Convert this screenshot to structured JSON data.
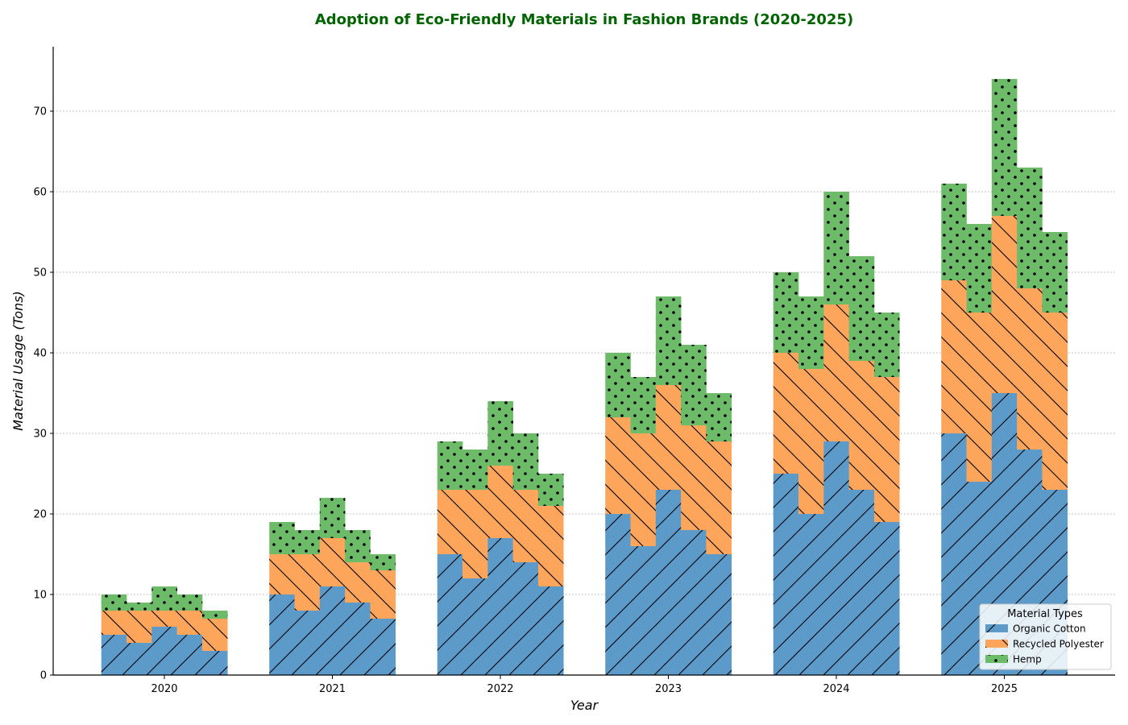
{
  "chart_data": {
    "type": "bar",
    "stacked": true,
    "title": "Adoption of Eco-Friendly Materials in Fashion Brands (2020-2025)",
    "xlabel": "Year",
    "ylabel": "Material Usage (Tons)",
    "categories": [
      "2020",
      "2021",
      "2022",
      "2023",
      "2024",
      "2025"
    ],
    "bars_per_category": 5,
    "ylim": [
      0,
      78
    ],
    "yticks": [
      0,
      10,
      20,
      30,
      40,
      50,
      60,
      70
    ],
    "grid": "y-dotted",
    "legend": {
      "title": "Material Types",
      "placement": "lower-right"
    },
    "series": [
      {
        "name": "Organic Cotton",
        "color": "#5b9ac9",
        "hatch": "/",
        "values": [
          [
            5,
            4,
            6,
            5,
            3
          ],
          [
            10,
            8,
            11,
            9,
            7
          ],
          [
            15,
            12,
            17,
            14,
            11
          ],
          [
            20,
            16,
            23,
            18,
            15
          ],
          [
            25,
            20,
            29,
            23,
            19
          ],
          [
            30,
            24,
            35,
            28,
            23
          ]
        ]
      },
      {
        "name": "Recycled Polyester",
        "color": "#fda55a",
        "hatch": "\\",
        "values": [
          [
            3,
            4,
            2,
            3,
            4
          ],
          [
            5,
            7,
            6,
            5,
            6
          ],
          [
            8,
            11,
            9,
            9,
            10
          ],
          [
            12,
            14,
            13,
            13,
            14
          ],
          [
            15,
            18,
            17,
            16,
            18
          ],
          [
            19,
            21,
            22,
            20,
            22
          ]
        ]
      },
      {
        "name": "Hemp",
        "color": "#6cbb68",
        "hatch": ".",
        "values": [
          [
            2,
            1,
            3,
            2,
            1
          ],
          [
            4,
            3,
            5,
            4,
            2
          ],
          [
            6,
            5,
            8,
            7,
            4
          ],
          [
            8,
            7,
            11,
            10,
            6
          ],
          [
            10,
            9,
            14,
            13,
            8
          ],
          [
            12,
            11,
            17,
            15,
            10
          ]
        ]
      }
    ]
  }
}
